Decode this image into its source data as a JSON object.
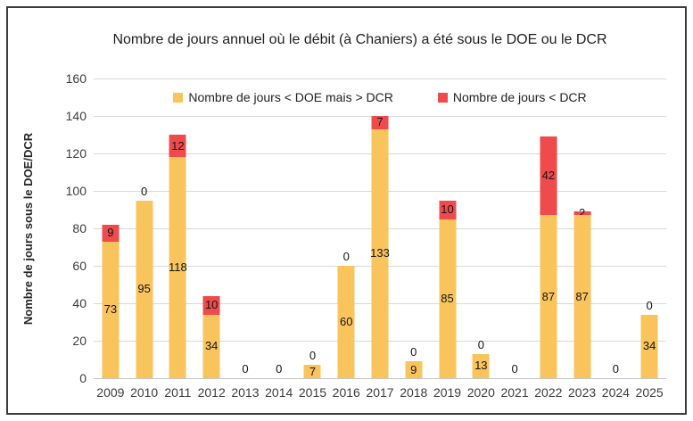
{
  "chart_data": {
    "type": "bar",
    "stacked": true,
    "title": "Nombre de jours annuel où le débit (à Chaniers) a été sous le DOE ou le DCR",
    "ylabel": "Nombre de jours sous le DOE/DCR",
    "categories": [
      "2009",
      "2010",
      "2011",
      "2012",
      "2013",
      "2014",
      "2015",
      "2016",
      "2017",
      "2018",
      "2019",
      "2020",
      "2021",
      "2022",
      "2023",
      "2024",
      "2025"
    ],
    "series": [
      {
        "name": "Nombre de jours < DOE mais > DCR",
        "color": "#F9C45C",
        "values": [
          73,
          95,
          118,
          34,
          0,
          0,
          7,
          60,
          133,
          9,
          85,
          13,
          0,
          87,
          87,
          0,
          34
        ]
      },
      {
        "name": "Nombre de jours < DCR",
        "color": "#EF4B4C",
        "values": [
          9,
          0,
          12,
          10,
          0,
          0,
          0,
          0,
          7,
          0,
          10,
          0,
          0,
          42,
          2,
          0,
          0
        ]
      }
    ],
    "ylim": [
      0,
      160
    ],
    "ytick_step": 20,
    "grid": true,
    "legend_position": "top-inside",
    "data_labels": true
  }
}
